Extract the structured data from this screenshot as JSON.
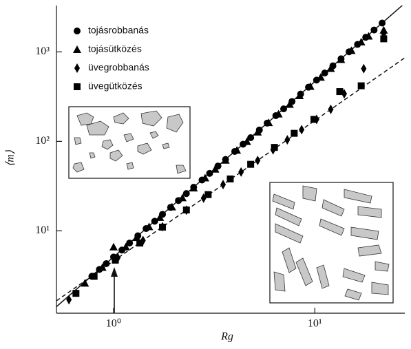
{
  "chart_data": {
    "type": "scatter",
    "x_label": "Rg",
    "y_label": "⟨m⟩",
    "log_x": true,
    "log_y": true,
    "xlim": [
      0.52,
      28
    ],
    "ylim": [
      1.2,
      3300
    ],
    "xticks": [
      {
        "value": 1,
        "label": "10⁰"
      },
      {
        "value": 10,
        "label": "10¹"
      }
    ],
    "yticks": [
      {
        "value": 10,
        "label": "10¹"
      },
      {
        "value": 100,
        "label": "10²"
      },
      {
        "value": 1000,
        "label": "10³"
      }
    ],
    "series": [
      {
        "name": "tojásrobbanás",
        "marker": "circle",
        "color": "#000000",
        "x": [
          0.78,
          0.85,
          0.92,
          1.0,
          1.1,
          1.2,
          1.32,
          1.45,
          1.6,
          1.75,
          1.92,
          2.1,
          2.3,
          2.5,
          2.75,
          3.0,
          3.3,
          3.6,
          4.0,
          4.4,
          4.8,
          5.3,
          5.8,
          6.4,
          7.0,
          7.7,
          8.5,
          9.3,
          10.2,
          11.2,
          12.3,
          13.5,
          14.8,
          16.3,
          17.9,
          19.7,
          21.6
        ],
        "values": [
          3.1,
          3.7,
          4.3,
          5.1,
          6.1,
          7.3,
          8.8,
          10.6,
          12.8,
          15.3,
          18.3,
          21.8,
          26.1,
          30.7,
          37,
          43.9,
          52.9,
          62.8,
          77.2,
          93,
          110,
          134,
          160,
          194,
          231,
          279,
          338,
          403,
          484,
          581,
          698,
          837,
          1003,
          1212,
          1456,
          1757,
          2100
        ]
      },
      {
        "name": "tojásütközés",
        "marker": "triangle",
        "color": "#000000",
        "x": [
          0.72,
          0.88,
          1.0,
          1.15,
          1.3,
          1.5,
          1.7,
          1.95,
          2.2,
          2.5,
          2.85,
          3.2,
          3.6,
          4.1,
          4.6,
          5.2,
          5.9,
          6.6,
          7.5,
          8.4,
          9.5,
          10.7,
          12.0,
          13.5,
          15.2,
          17.0,
          18.5,
          22
        ],
        "values": [
          2.6,
          3.9,
          6.6,
          6.6,
          8.4,
          11.1,
          14.1,
          18.5,
          23.4,
          30.1,
          39,
          48.9,
          61.5,
          79.5,
          99.5,
          127,
          162,
          202,
          259,
          324,
          412,
          520,
          652,
          821,
          1036,
          1290,
          1500,
          1750
        ]
      },
      {
        "name": "üvegrobbanás",
        "marker": "diamond",
        "color": "#000000",
        "x": [
          0.6,
          1.05,
          1.4,
          1.75,
          2.3,
          2.8,
          3.5,
          4.3,
          5.2,
          6.2,
          7.3,
          8.6,
          10.2,
          12.0,
          14.0,
          17.5,
          22
        ],
        "values": [
          1.7,
          5.0,
          7.8,
          11.1,
          17,
          23.2,
          32.9,
          45.4,
          61.2,
          80.5,
          104,
          135,
          176,
          228,
          340,
          650,
          1600
        ]
      },
      {
        "name": "üvegütközés",
        "marker": "square",
        "color": "#000000",
        "x": [
          0.65,
          0.8,
          1.02,
          1.35,
          1.75,
          2.3,
          2.95,
          3.8,
          4.8,
          6.3,
          7.9,
          9.9,
          13.3,
          17.0,
          22
        ],
        "values": [
          2.0,
          3.1,
          4.7,
          7.3,
          11,
          17.1,
          25.4,
          38,
          55.4,
          85.6,
          123,
          176,
          360,
          418,
          1400
        ]
      }
    ],
    "fits": [
      {
        "style": "solid",
        "x": [
          0.52,
          28
        ],
        "values": [
          1.42,
          3500
        ]
      },
      {
        "style": "dashed",
        "x": [
          0.52,
          28
        ],
        "values": [
          1.65,
          860
        ]
      }
    ]
  }
}
